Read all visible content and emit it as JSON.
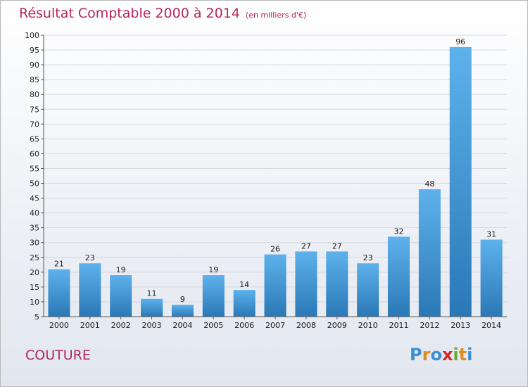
{
  "chart_data": {
    "type": "bar",
    "title": "Résultat Comptable 2000 à 2014",
    "subtitle": "(en milliers d'€)",
    "categories": [
      "2000",
      "2001",
      "2002",
      "2003",
      "2004",
      "2005",
      "2006",
      "2007",
      "2008",
      "2009",
      "2010",
      "2011",
      "2012",
      "2013",
      "2014"
    ],
    "values": [
      21,
      23,
      19,
      11,
      9,
      19,
      14,
      26,
      27,
      27,
      23,
      32,
      48,
      96,
      31
    ],
    "xlabel": "",
    "ylabel": "",
    "ylim": [
      5,
      100
    ],
    "yticks": [
      5,
      10,
      15,
      20,
      25,
      30,
      35,
      40,
      45,
      50,
      55,
      60,
      65,
      70,
      75,
      80,
      85,
      90,
      95,
      100
    ],
    "bar_color_top": "#5eb2ec",
    "bar_color_bottom": "#2a78b6",
    "legend": "none"
  },
  "footer": {
    "town": "COUTURE",
    "logo_letters": [
      "P",
      "r",
      "o",
      "x",
      "i",
      "t",
      "i"
    ],
    "logo_colors": [
      "#3a8fd6",
      "#e08a1e",
      "#3a8fd6",
      "#d9262b",
      "#6aaa3a",
      "#e08a1e",
      "#3a8fd6"
    ]
  },
  "colors": {
    "title": "#b5265e",
    "axis": "#555555",
    "gridline": "#d5d9df"
  }
}
